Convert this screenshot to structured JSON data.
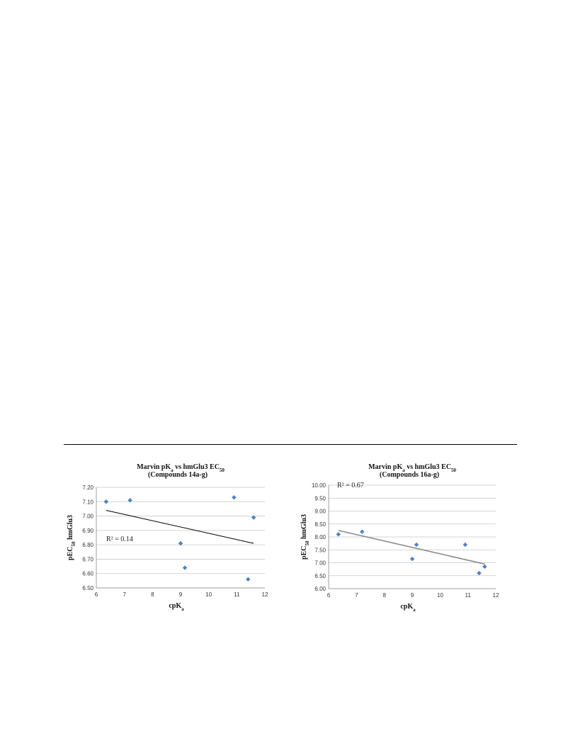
{
  "chart_data": [
    {
      "type": "scatter",
      "title_main": "Marvin pK",
      "title_sub_a": "a",
      "title_mid": " vs hmGlu3  EC",
      "title_sub_b": "50",
      "subtitle": "(Compounds  14a-g)",
      "xlabel_main": "cpK",
      "xlabel_sub": "a",
      "ylabel_main": "pEC",
      "ylabel_sub": "50",
      "ylabel_tail": " hmGlu3",
      "xlim": [
        6,
        12
      ],
      "ylim": [
        6.5,
        7.2
      ],
      "x_ticks": [
        "6",
        "7",
        "8",
        "9",
        "10",
        "11",
        "12"
      ],
      "y_ticks": [
        "6.50",
        "6.60",
        "6.70",
        "6.80",
        "6.90",
        "7.00",
        "7.10",
        "7.20"
      ],
      "grid": "horizontal",
      "marker_color": "#4f81bd",
      "trendline_color": "#000000",
      "points": [
        {
          "x": 6.35,
          "y": 7.1
        },
        {
          "x": 7.2,
          "y": 7.11
        },
        {
          "x": 9.0,
          "y": 6.81
        },
        {
          "x": 9.15,
          "y": 6.64
        },
        {
          "x": 10.9,
          "y": 7.13
        },
        {
          "x": 11.4,
          "y": 6.56
        },
        {
          "x": 11.6,
          "y": 6.99
        }
      ],
      "trendline": {
        "x": [
          6.35,
          11.6
        ],
        "y": [
          7.04,
          6.81
        ]
      },
      "annotation": "R² = 0.14"
    },
    {
      "type": "scatter",
      "title_main": "Marvin pK",
      "title_sub_a": "a",
      "title_mid": " vs hmGlu3  EC",
      "title_sub_b": "50",
      "subtitle": "(Compounds  16a-g)",
      "xlabel_main": "cpK",
      "xlabel_sub": "a",
      "ylabel_main": "pEC",
      "ylabel_sub": "50",
      "ylabel_tail": " hmGlu3",
      "xlim": [
        6,
        12
      ],
      "ylim": [
        6.0,
        10.0
      ],
      "x_ticks": [
        "6",
        "7",
        "8",
        "9",
        "10",
        "11",
        "12"
      ],
      "y_ticks": [
        "6.00",
        "6.50",
        "7.00",
        "7.50",
        "8.00",
        "8.50",
        "9.00",
        "9.50",
        "10.00"
      ],
      "grid": "horizontal",
      "marker_color": "#4f81bd",
      "trendline_color": "#8c8c8c",
      "points": [
        {
          "x": 6.35,
          "y": 8.1
        },
        {
          "x": 7.2,
          "y": 8.2
        },
        {
          "x": 9.0,
          "y": 7.15
        },
        {
          "x": 9.15,
          "y": 7.7
        },
        {
          "x": 10.9,
          "y": 7.7
        },
        {
          "x": 11.4,
          "y": 6.6
        },
        {
          "x": 11.6,
          "y": 6.85
        }
      ],
      "trendline": {
        "x": [
          6.35,
          11.6
        ],
        "y": [
          8.25,
          6.95
        ]
      },
      "annotation": "R² = 0.67"
    }
  ]
}
